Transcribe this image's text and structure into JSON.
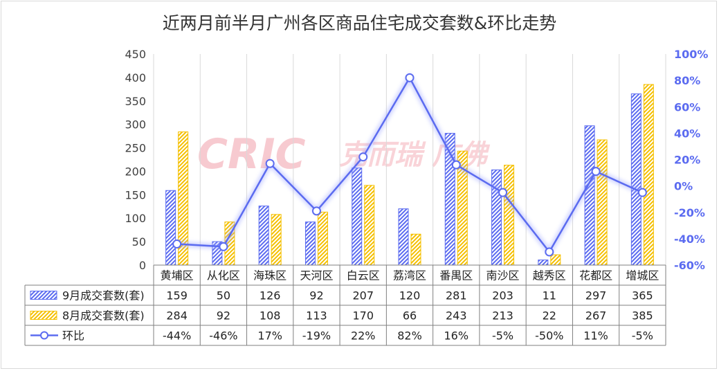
{
  "title": "近两月前半月广州各区商品住宅成交套数&环比走势",
  "watermark": {
    "brand": "CRIC",
    "text": "克而瑞 广佛"
  },
  "colors": {
    "blue": "#5b6bf0",
    "yellow": "#f5c000",
    "grid": "#d9d9d9"
  },
  "chart_data": {
    "type": "bar",
    "title": "近两月前半月广州各区商品住宅成交套数&环比走势",
    "categories": [
      "黄埔区",
      "从化区",
      "海珠区",
      "天河区",
      "白云区",
      "荔湾区",
      "番禺区",
      "南沙区",
      "越秀区",
      "花都区",
      "增城区"
    ],
    "series": [
      {
        "name": "9月成交套数(套)",
        "type": "bar",
        "axis": "left",
        "color": "#5b6bf0",
        "values": [
          159,
          50,
          126,
          92,
          207,
          120,
          281,
          203,
          11,
          297,
          365
        ]
      },
      {
        "name": "8月成交套数(套)",
        "type": "bar",
        "axis": "left",
        "color": "#f5c000",
        "values": [
          284,
          92,
          108,
          113,
          170,
          66,
          243,
          213,
          22,
          267,
          385
        ]
      },
      {
        "name": "环比",
        "type": "line",
        "axis": "right",
        "color": "#5b6bf0",
        "values": [
          -44,
          -46,
          17,
          -19,
          22,
          82,
          16,
          -5,
          -50,
          11,
          -5
        ],
        "labels": [
          "-44%",
          "-46%",
          "17%",
          "-19%",
          "22%",
          "82%",
          "16%",
          "-5%",
          "-50%",
          "11%",
          "-5%"
        ]
      }
    ],
    "y_left": {
      "min": 0,
      "max": 450,
      "ticks": [
        "0",
        "50",
        "100",
        "150",
        "200",
        "250",
        "300",
        "350",
        "400",
        "450"
      ]
    },
    "y_right": {
      "min": -60,
      "max": 100,
      "ticks": [
        "-60%",
        "-40%",
        "-20%",
        "0%",
        "20%",
        "40%",
        "60%",
        "80%",
        "100%"
      ]
    },
    "grid": true,
    "legend": "data-table"
  }
}
